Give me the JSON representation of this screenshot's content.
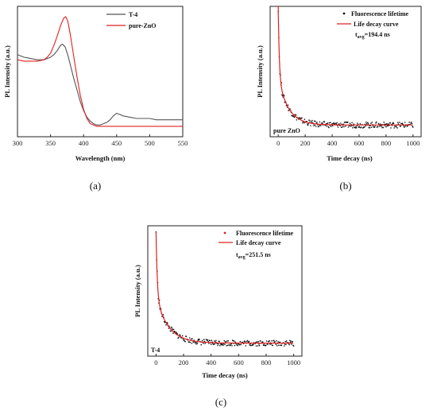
{
  "captions": [
    "(a)",
    "(b)",
    "(c)"
  ],
  "chart_data": [
    {
      "panel": "a",
      "type": "line",
      "xlabel": "Wavelength (nm)",
      "ylabel": "PL Intensity (a.u.)",
      "xlim": [
        300,
        550
      ],
      "xticks": [
        300,
        350,
        400,
        450,
        500,
        550
      ],
      "ylim": [
        0,
        1.0
      ],
      "legend_position": "top-right",
      "series": [
        {
          "name": "T-4",
          "color": "#555555",
          "x": [
            300,
            310,
            320,
            330,
            340,
            350,
            355,
            360,
            365,
            368,
            372,
            376,
            380,
            385,
            390,
            395,
            400,
            405,
            410,
            415,
            420,
            425,
            430,
            435,
            440,
            445,
            450,
            455,
            460,
            470,
            480,
            490,
            500,
            510,
            520,
            530,
            540,
            550
          ],
          "y": [
            0.63,
            0.61,
            0.6,
            0.59,
            0.59,
            0.61,
            0.63,
            0.66,
            0.7,
            0.71,
            0.69,
            0.63,
            0.55,
            0.45,
            0.36,
            0.27,
            0.2,
            0.15,
            0.12,
            0.1,
            0.09,
            0.09,
            0.1,
            0.11,
            0.13,
            0.16,
            0.18,
            0.17,
            0.16,
            0.15,
            0.14,
            0.14,
            0.14,
            0.13,
            0.13,
            0.13,
            0.13,
            0.13
          ]
        },
        {
          "name": "pure-ZnO",
          "color": "#e02020",
          "x": [
            300,
            310,
            320,
            330,
            340,
            345,
            350,
            355,
            360,
            365,
            370,
            373,
            376,
            380,
            385,
            390,
            395,
            400,
            405,
            410,
            415,
            420,
            425,
            430,
            440,
            450,
            460,
            480,
            500,
            520,
            550
          ],
          "y": [
            0.59,
            0.58,
            0.58,
            0.58,
            0.59,
            0.61,
            0.64,
            0.7,
            0.77,
            0.85,
            0.91,
            0.92,
            0.89,
            0.78,
            0.62,
            0.46,
            0.32,
            0.21,
            0.14,
            0.1,
            0.09,
            0.08,
            0.08,
            0.08,
            0.08,
            0.08,
            0.08,
            0.08,
            0.08,
            0.08,
            0.08
          ]
        }
      ]
    },
    {
      "panel": "b",
      "type": "scatter",
      "xlabel": "Time decay (ns)",
      "ylabel": "PL Intensity (a.u.)",
      "xlim": [
        -60,
        1060
      ],
      "xticks": [
        0,
        200,
        400,
        600,
        800,
        1000
      ],
      "ylim": [
        0,
        1.0
      ],
      "legend_position": "top-right",
      "annotation": "tavg=194.4 ns",
      "annotation_main": "t",
      "annotation_sub": "avg",
      "annotation_rest": "=194.4 ns",
      "sample_label": "pure ZnO",
      "decay": {
        "a1": 0.55,
        "tau1": 8,
        "a2": 0.36,
        "tau2": 75,
        "base": 0.09
      },
      "series": [
        {
          "name": "Fluorescence lifetime",
          "color": "#111111",
          "marker": "dot"
        },
        {
          "name": "Life decay curve",
          "color": "#e02020",
          "marker": "line"
        }
      ]
    },
    {
      "panel": "c",
      "type": "scatter",
      "xlabel": "Time decay (ns)",
      "ylabel": "PL Intensity (a.u.)",
      "xlim": [
        -60,
        1060
      ],
      "xticks": [
        0,
        200,
        400,
        600,
        800,
        1000
      ],
      "ylim": [
        0,
        1.0
      ],
      "legend_position": "top-right",
      "annotation": "tavg=251.5 ns",
      "annotation_main": "t",
      "annotation_sub": "avg",
      "annotation_rest": "=251.5 ns",
      "sample_label": "T-4",
      "decay": {
        "a1": 0.5,
        "tau1": 9,
        "a2": 0.35,
        "tau2": 90,
        "base": 0.1
      },
      "series": [
        {
          "name": "Fluorescence lifetime",
          "color": "#111111",
          "marker": "dot"
        },
        {
          "name": "Life decay curve",
          "color": "#e02020",
          "marker": "line"
        }
      ]
    }
  ]
}
